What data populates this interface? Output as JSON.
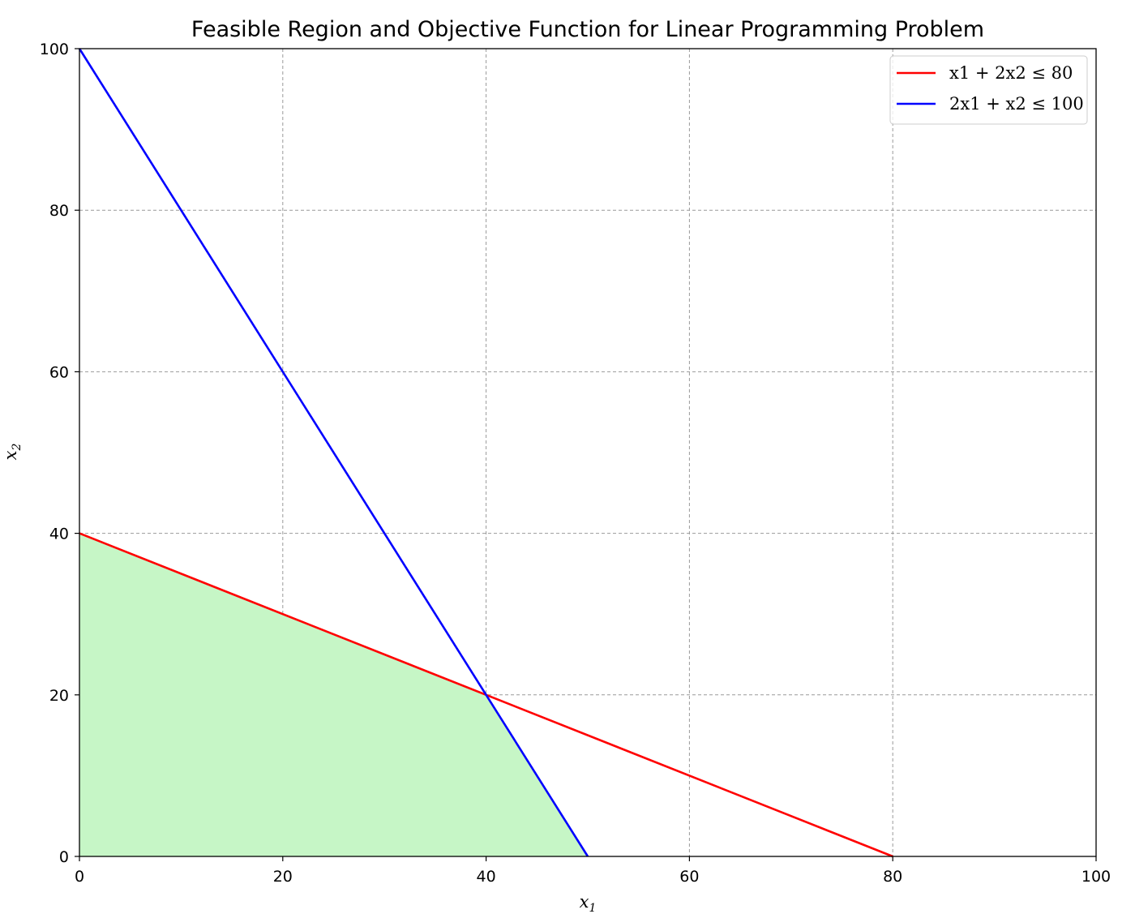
{
  "chart_data": {
    "type": "line",
    "title": "Feasible Region and Objective Function for Linear Programming Problem",
    "xlabel": {
      "base": "x",
      "sub": "1"
    },
    "ylabel": {
      "base": "x",
      "sub": "2"
    },
    "xlim": [
      0,
      100
    ],
    "ylim": [
      0,
      100
    ],
    "xticks": [
      0,
      20,
      40,
      60,
      80,
      100
    ],
    "yticks": [
      0,
      20,
      40,
      60,
      80,
      100
    ],
    "grid": true,
    "legend_position": "top-right",
    "series": [
      {
        "name": "x1 + 2x2 ≤ 80",
        "color": "#ff0000",
        "x": [
          0,
          80
        ],
        "y": [
          40,
          0
        ]
      },
      {
        "name": "2x1 + x2 ≤ 100",
        "color": "#0000ff",
        "x": [
          0,
          50
        ],
        "y": [
          100,
          0
        ]
      }
    ],
    "feasible_region": {
      "color": "#c6f6c6",
      "vertices": [
        [
          0,
          0
        ],
        [
          0,
          40
        ],
        [
          40,
          20
        ],
        [
          50,
          0
        ]
      ]
    }
  }
}
